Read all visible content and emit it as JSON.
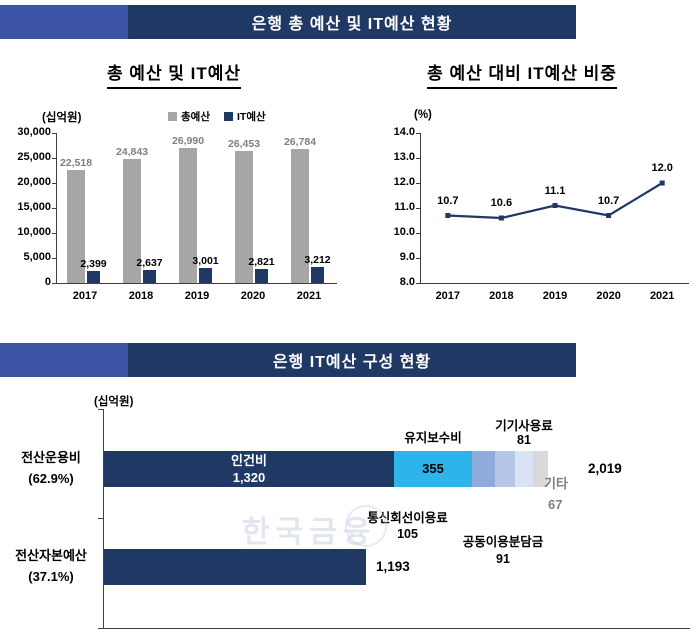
{
  "header1": {
    "title": "은행 총 예산 및 IT예산 현황"
  },
  "header2": {
    "title": "은행 IT예산 구성 현황"
  },
  "watermark": "한국금융",
  "chart_data": [
    {
      "type": "bar",
      "title": "총 예산 및 IT예산",
      "unit_label": "(십억원)",
      "categories": [
        "2017",
        "2018",
        "2019",
        "2020",
        "2021"
      ],
      "series": [
        {
          "name": "총예산",
          "color": "#a6a6a6",
          "label_color": "#7f7f7f",
          "values": [
            22518,
            24843,
            26990,
            26453,
            26784
          ],
          "value_labels": [
            "22,518",
            "24,843",
            "26,990",
            "26,453",
            "26,784"
          ]
        },
        {
          "name": "IT예산",
          "color": "#1f3864",
          "label_color": "#000000",
          "values": [
            2399,
            2637,
            3001,
            2821,
            3212
          ],
          "value_labels": [
            "2,399",
            "2,637",
            "3,001",
            "2,821",
            "3,212"
          ]
        }
      ],
      "ylim": [
        0,
        30000
      ],
      "ytick_step": 5000,
      "ytick_labels": [
        "0",
        "5,000",
        "10,000",
        "15,000",
        "20,000",
        "25,000",
        "30,000"
      ],
      "grid": false,
      "legend_position": "top-right"
    },
    {
      "type": "line",
      "title": "총 예산 대비 IT예산 비중",
      "unit_label": "(%)",
      "categories": [
        "2017",
        "2018",
        "2019",
        "2020",
        "2021"
      ],
      "values": [
        10.7,
        10.6,
        11.1,
        10.7,
        12.0
      ],
      "value_labels": [
        "10.7",
        "10.6",
        "11.1",
        "10.7",
        "12.0"
      ],
      "ylim": [
        8.0,
        14.0
      ],
      "ytick_step": 1.0,
      "ytick_labels": [
        "8.0",
        "9.0",
        "10.0",
        "11.0",
        "12.0",
        "13.0",
        "14.0"
      ],
      "grid": false,
      "color": "#1f3864"
    },
    {
      "type": "bar",
      "subtype": "stacked-horizontal",
      "unit_label": "(십억원)",
      "rows": [
        {
          "label": "전산운용비",
          "sublabel": "(62.9%)",
          "total": 2019,
          "total_label": "2,019",
          "segments": [
            {
              "name": "인건비",
              "value": 1320,
              "label": "1,320",
              "color": "#1f3864",
              "inside_label": "name_value"
            },
            {
              "name": "유지보수비",
              "value": 355,
              "label": "355",
              "color": "#2fb4e9",
              "inside_label": "value"
            },
            {
              "name": "통신회선이용료",
              "value": 105,
              "label": "105",
              "color": "#8faadc",
              "inside_label": "none"
            },
            {
              "name": "공동이용분담금",
              "value": 91,
              "label": "91",
              "color": "#b4c7e7",
              "inside_label": "none"
            },
            {
              "name": "기기사용료",
              "value": 81,
              "label": "81",
              "color": "#dae3f3",
              "inside_label": "none"
            },
            {
              "name": "기타",
              "value": 67,
              "label": "67",
              "color": "#d9d9d9",
              "inside_label": "none"
            }
          ]
        },
        {
          "label": "전산자본예산",
          "sublabel": "(37.1%)",
          "total": 1193,
          "total_label": "1,193",
          "segments": [
            {
              "name": "전산자본예산",
              "value": 1193,
              "label": "1,193",
              "color": "#1f3864",
              "inside_label": "none"
            }
          ]
        }
      ]
    }
  ]
}
